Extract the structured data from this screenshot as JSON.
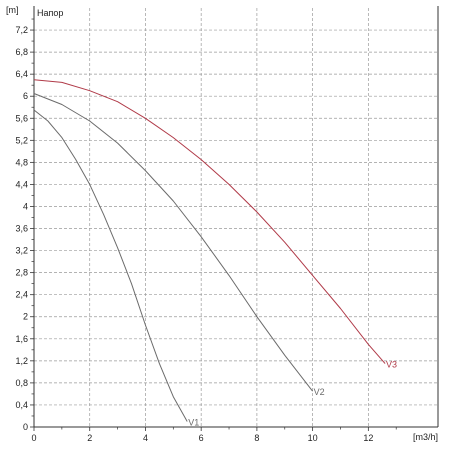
{
  "chart_data": {
    "type": "line",
    "title": "Напор",
    "ylabel": "[m]",
    "xlabel": "[m3/h]",
    "xlim": [
      0,
      14.5
    ],
    "ylim": [
      0,
      7.6
    ],
    "xticks": [
      0,
      2,
      4,
      6,
      8,
      10,
      12
    ],
    "xtick_labels": [
      "0",
      "2",
      "4",
      "6",
      "8",
      "10",
      "12"
    ],
    "yticks": [
      0,
      0.4,
      0.8,
      1.2,
      1.6,
      2,
      2.4,
      2.8,
      3.2,
      3.6,
      4,
      4.4,
      4.8,
      5.2,
      5.6,
      6,
      6.4,
      6.8,
      7.2
    ],
    "ytick_labels": [
      "0",
      "0,4",
      "0,8",
      "1,2",
      "1,6",
      "2",
      "2,4",
      "2,8",
      "3,2",
      "3,6",
      "4",
      "4,4",
      "4,8",
      "5,2",
      "5,6",
      "6",
      "6,4",
      "6,8",
      "7,2"
    ],
    "grid": true,
    "series": [
      {
        "name": "V1",
        "color": "#6b6b6b",
        "x": [
          0,
          0.5,
          1,
          1.5,
          2,
          2.5,
          3,
          3.5,
          4,
          4.5,
          5,
          5.5
        ],
        "y": [
          5.75,
          5.55,
          5.25,
          4.85,
          4.4,
          3.85,
          3.25,
          2.6,
          1.85,
          1.15,
          0.55,
          0.1
        ]
      },
      {
        "name": "V2",
        "color": "#6b6b6b",
        "x": [
          0,
          1,
          2,
          3,
          4,
          5,
          6,
          7,
          8,
          9,
          10
        ],
        "y": [
          6.05,
          5.85,
          5.55,
          5.15,
          4.65,
          4.1,
          3.45,
          2.75,
          2.0,
          1.3,
          0.65
        ]
      },
      {
        "name": "V3",
        "color": "#b03a48",
        "x": [
          0,
          1,
          2,
          3,
          4,
          5,
          6,
          7,
          8,
          9,
          10,
          11,
          12,
          12.6
        ],
        "y": [
          6.3,
          6.25,
          6.1,
          5.9,
          5.6,
          5.25,
          4.85,
          4.4,
          3.9,
          3.35,
          2.75,
          2.15,
          1.5,
          1.15
        ]
      }
    ]
  }
}
